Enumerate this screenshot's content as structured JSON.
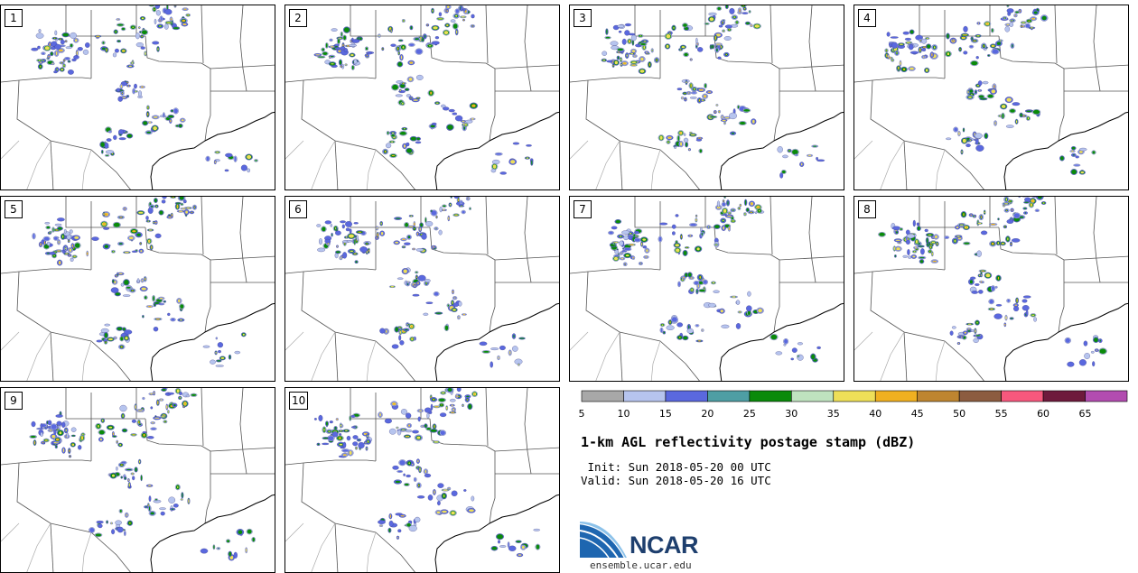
{
  "panels": [
    {
      "label": "1"
    },
    {
      "label": "2"
    },
    {
      "label": "3"
    },
    {
      "label": "4"
    },
    {
      "label": "5"
    },
    {
      "label": "6"
    },
    {
      "label": "7"
    },
    {
      "label": "8"
    },
    {
      "label": "9"
    },
    {
      "label": "10"
    }
  ],
  "colorbar": {
    "colors": [
      "#a8a8a8",
      "#b6c4ee",
      "#5a68de",
      "#4e9ea4",
      "#0a8a0a",
      "#bfe3bf",
      "#eedf58",
      "#f0b020",
      "#be8530",
      "#8c5c40",
      "#f7587d",
      "#6e1a3c",
      "#b24cb0"
    ],
    "labels": [
      "5",
      "10",
      "15",
      "20",
      "25",
      "30",
      "35",
      "40",
      "45",
      "50",
      "55",
      "60",
      "65"
    ]
  },
  "title": "1-km AGL reflectivity postage stamp (dBZ)",
  "init_line": " Init: Sun 2018-05-20 00 UTC",
  "valid_line": "Valid: Sun 2018-05-20 16 UTC",
  "logo": {
    "text": "NCAR",
    "url": "ensemble.ucar.edu"
  }
}
